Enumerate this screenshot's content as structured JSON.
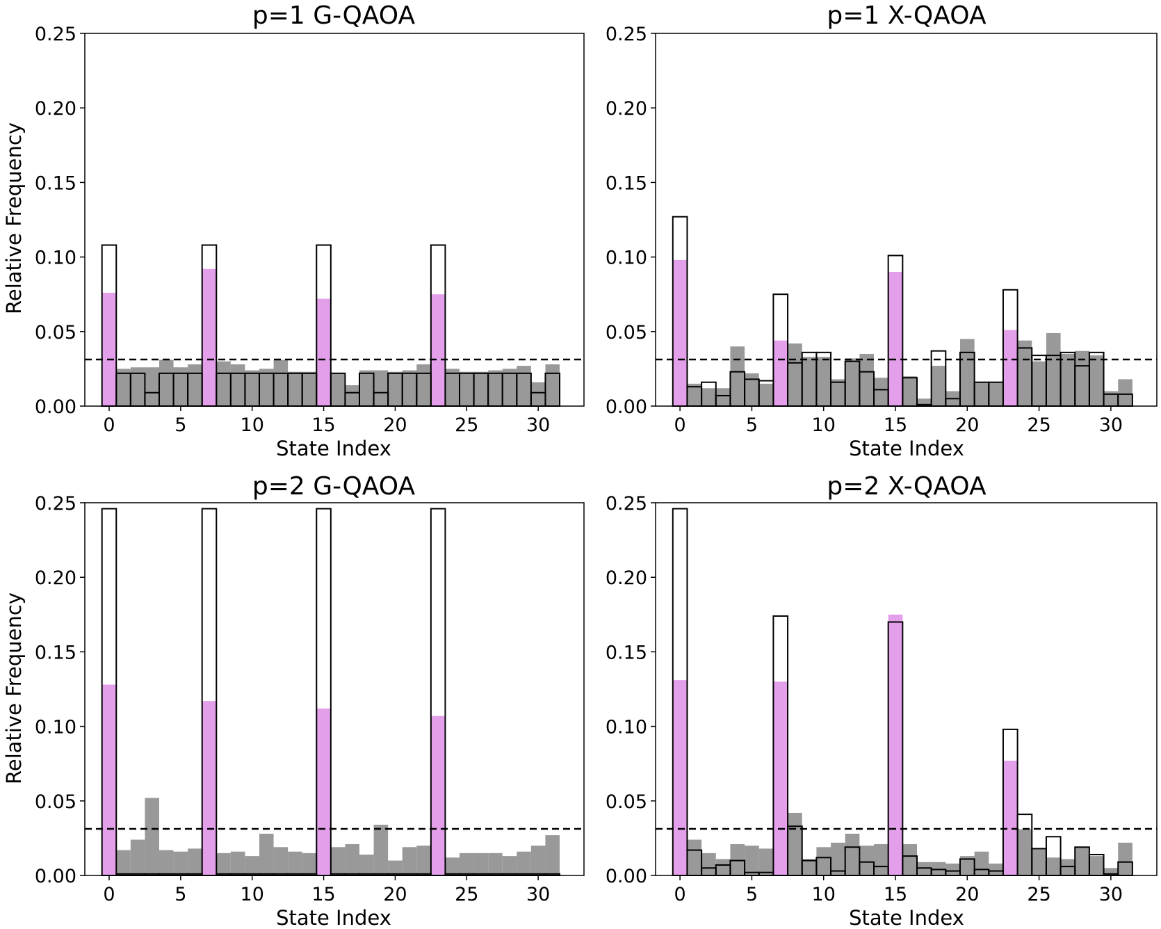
{
  "colors": {
    "experimental": "#999999",
    "target": "#e39fea",
    "ideal_edge": "#000000",
    "uniform_line": "#000000"
  },
  "chart_data": [
    {
      "type": "bar",
      "title": "p=1 G-QAOA",
      "xlabel": "State Index",
      "ylabel": "Relative Frequency",
      "xlim": [
        -1.7,
        33.2
      ],
      "ylim": [
        0,
        0.25
      ],
      "xticks": [
        0,
        5,
        10,
        15,
        20,
        25,
        30
      ],
      "xtick_labels": [
        "0",
        "5",
        "10",
        "15",
        "20",
        "25",
        "30"
      ],
      "yticks": [
        0,
        0.05,
        0.1,
        0.15,
        0.2,
        0.25
      ],
      "ytick_labels": [
        "0.00",
        "0.05",
        "0.10",
        "0.15",
        "0.20",
        "0.25"
      ],
      "target_states": [
        0,
        7,
        15,
        23
      ],
      "uniform_baseline": 0.03125,
      "experimental": [
        0.076,
        0.025,
        0.026,
        0.026,
        0.031,
        0.026,
        0.028,
        0.092,
        0.03,
        0.028,
        0.024,
        0.025,
        0.031,
        0.023,
        0.023,
        0.072,
        0.022,
        0.014,
        0.024,
        0.024,
        0.023,
        0.024,
        0.028,
        0.075,
        0.025,
        0.023,
        0.023,
        0.024,
        0.025,
        0.027,
        0.016,
        0.028
      ],
      "ideal": [
        0.108,
        0.022,
        0.022,
        0.009,
        0.022,
        0.022,
        0.022,
        0.108,
        0.022,
        0.022,
        0.022,
        0.022,
        0.022,
        0.022,
        0.022,
        0.108,
        0.022,
        0.009,
        0.022,
        0.009,
        0.022,
        0.022,
        0.022,
        0.108,
        0.022,
        0.022,
        0.022,
        0.022,
        0.022,
        0.022,
        0.009,
        0.022
      ]
    },
    {
      "type": "bar",
      "title": "p=1 X-QAOA",
      "xlabel": "State Index",
      "ylabel": "",
      "xlim": [
        -1.7,
        33.2
      ],
      "ylim": [
        0,
        0.25
      ],
      "xticks": [
        0,
        5,
        10,
        15,
        20,
        25,
        30
      ],
      "xtick_labels": [
        "0",
        "5",
        "10",
        "15",
        "20",
        "25",
        "30"
      ],
      "yticks": [
        0,
        0.05,
        0.1,
        0.15,
        0.2,
        0.25
      ],
      "ytick_labels": [
        "0.00",
        "0.05",
        "0.10",
        "0.15",
        "0.20",
        "0.25"
      ],
      "target_states": [
        0,
        7,
        15,
        23
      ],
      "uniform_baseline": 0.03125,
      "experimental": [
        0.098,
        0.015,
        0.012,
        0.012,
        0.04,
        0.022,
        0.015,
        0.044,
        0.042,
        0.033,
        0.033,
        0.018,
        0.032,
        0.035,
        0.019,
        0.09,
        0.02,
        0.005,
        0.027,
        0.01,
        0.045,
        0.016,
        0.016,
        0.051,
        0.044,
        0.03,
        0.049,
        0.035,
        0.037,
        0.034,
        0.01,
        0.018
      ],
      "ideal": [
        0.127,
        0.013,
        0.016,
        0.007,
        0.023,
        0.018,
        0.017,
        0.075,
        0.029,
        0.036,
        0.036,
        0.016,
        0.03,
        0.023,
        0.011,
        0.101,
        0.019,
        0.001,
        0.037,
        0.005,
        0.036,
        0.016,
        0.016,
        0.078,
        0.039,
        0.034,
        0.034,
        0.036,
        0.027,
        0.036,
        0.008,
        0.008
      ]
    },
    {
      "type": "bar",
      "title": "p=2 G-QAOA",
      "xlabel": "State Index",
      "ylabel": "Relative Frequency",
      "xlim": [
        -1.7,
        33.2
      ],
      "ylim": [
        0,
        0.25
      ],
      "xticks": [
        0,
        5,
        10,
        15,
        20,
        25,
        30
      ],
      "xtick_labels": [
        "0",
        "5",
        "10",
        "15",
        "20",
        "25",
        "30"
      ],
      "yticks": [
        0,
        0.05,
        0.1,
        0.15,
        0.2,
        0.25
      ],
      "ytick_labels": [
        "0.00",
        "0.05",
        "0.10",
        "0.15",
        "0.20",
        "0.25"
      ],
      "target_states": [
        0,
        7,
        15,
        23
      ],
      "uniform_baseline": 0.03125,
      "experimental": [
        0.128,
        0.017,
        0.024,
        0.052,
        0.017,
        0.016,
        0.018,
        0.117,
        0.015,
        0.016,
        0.013,
        0.028,
        0.019,
        0.016,
        0.015,
        0.112,
        0.019,
        0.021,
        0.014,
        0.034,
        0.01,
        0.019,
        0.02,
        0.107,
        0.012,
        0.015,
        0.015,
        0.015,
        0.013,
        0.016,
        0.02,
        0.027
      ],
      "ideal": [
        0.246,
        0.001,
        0.001,
        0.001,
        0.001,
        0.001,
        0.001,
        0.246,
        0.001,
        0.001,
        0.001,
        0.001,
        0.001,
        0.001,
        0.001,
        0.246,
        0.001,
        0.001,
        0.001,
        0.001,
        0.001,
        0.001,
        0.001,
        0.246,
        0.001,
        0.001,
        0.001,
        0.001,
        0.001,
        0.001,
        0.001,
        0.001
      ]
    },
    {
      "type": "bar",
      "title": "p=2 X-QAOA",
      "xlabel": "State Index",
      "ylabel": "",
      "xlim": [
        -1.7,
        33.2
      ],
      "ylim": [
        0,
        0.25
      ],
      "xticks": [
        0,
        5,
        10,
        15,
        20,
        25,
        30
      ],
      "xtick_labels": [
        "0",
        "5",
        "10",
        "15",
        "20",
        "25",
        "30"
      ],
      "yticks": [
        0,
        0.05,
        0.1,
        0.15,
        0.2,
        0.25
      ],
      "ytick_labels": [
        "0.00",
        "0.05",
        "0.10",
        "0.15",
        "0.20",
        "0.25"
      ],
      "target_states": [
        0,
        7,
        15,
        23
      ],
      "uniform_baseline": 0.03125,
      "experimental": [
        0.131,
        0.024,
        0.015,
        0.011,
        0.021,
        0.02,
        0.018,
        0.13,
        0.042,
        0.011,
        0.019,
        0.022,
        0.028,
        0.02,
        0.021,
        0.175,
        0.021,
        0.009,
        0.009,
        0.008,
        0.013,
        0.016,
        0.008,
        0.077,
        0.031,
        0.018,
        0.012,
        0.011,
        0.019,
        0.013,
        0.005,
        0.022
      ],
      "ideal": [
        0.246,
        0.017,
        0.005,
        0.007,
        0.01,
        0.002,
        0.002,
        0.174,
        0.033,
        0.01,
        0.012,
        0.003,
        0.019,
        0.009,
        0.006,
        0.17,
        0.013,
        0.005,
        0.004,
        0.003,
        0.011,
        0.004,
        0.003,
        0.098,
        0.041,
        0.018,
        0.026,
        0.006,
        0.019,
        0.014,
        0.001,
        0.009
      ]
    }
  ]
}
